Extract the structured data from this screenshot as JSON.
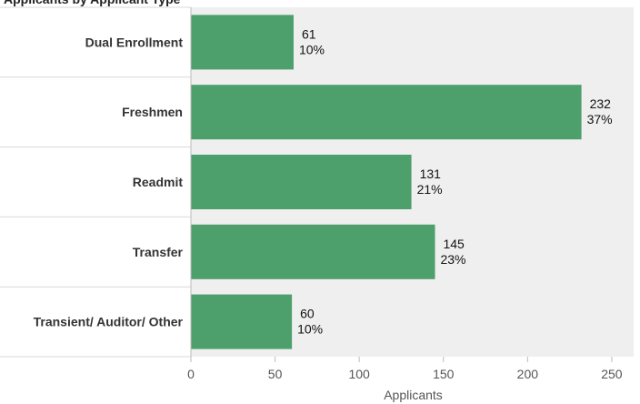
{
  "chart_data": {
    "type": "bar",
    "orientation": "horizontal",
    "title_fragment": "Applicants by Applicant Type",
    "categories": [
      "Dual Enrollment",
      "Freshmen",
      "Readmit",
      "Transfer",
      "Transient/ Auditor/ Other"
    ],
    "values": [
      61,
      232,
      131,
      145,
      60
    ],
    "percent_labels": [
      "10%",
      "37%",
      "21%",
      "23%",
      "10%"
    ],
    "xlabel": "Applicants",
    "xlim": [
      0,
      263
    ],
    "xticks": [
      0,
      50,
      100,
      150,
      200,
      250
    ],
    "grid": false,
    "bar_color": "#4d9f6b",
    "plot_background": "#efefef"
  }
}
